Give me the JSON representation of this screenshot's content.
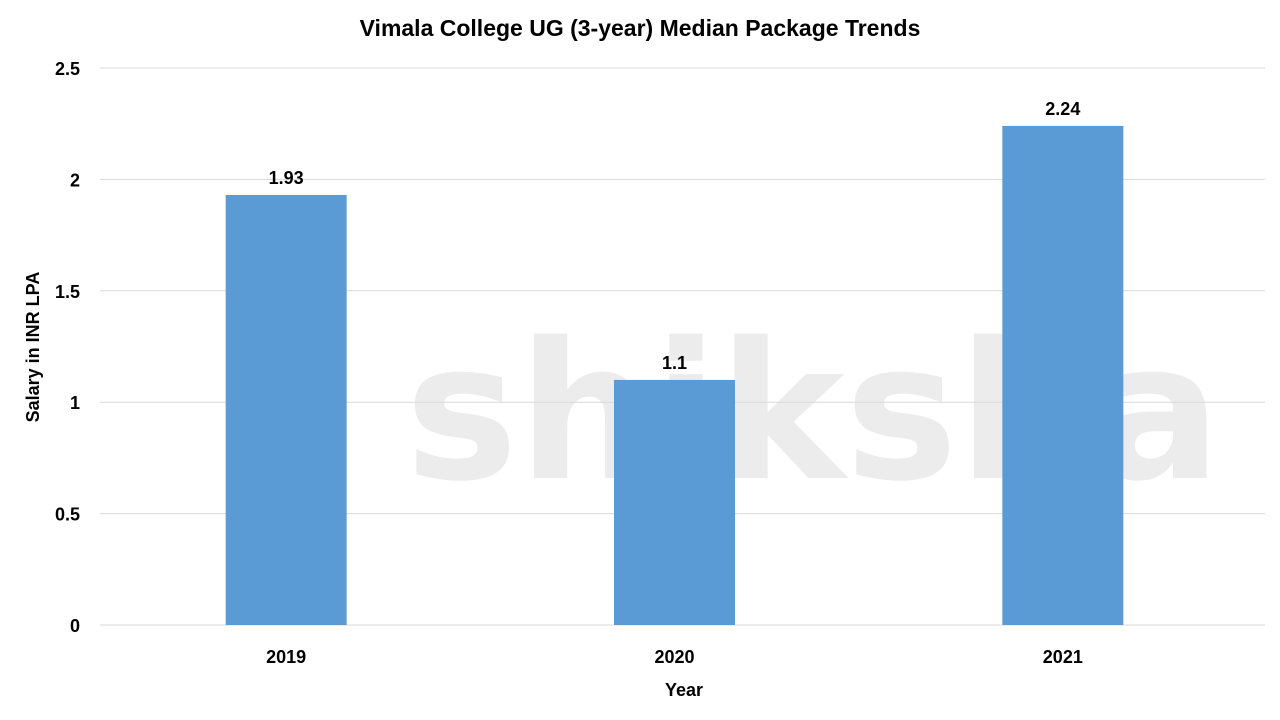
{
  "chart_data": {
    "type": "bar",
    "title": "Vimala College UG (3-year) Median Package Trends",
    "xlabel": "Year",
    "ylabel": "Salary in INR LPA",
    "categories": [
      "2019",
      "2020",
      "2021"
    ],
    "values": [
      1.93,
      1.1,
      2.24
    ],
    "data_labels": [
      "1.93",
      "1.1",
      "2.24"
    ],
    "ylim": [
      0,
      2.5
    ],
    "yticks": [
      0,
      0.5,
      1,
      1.5,
      2,
      2.5
    ],
    "ytick_labels": [
      "0",
      "0.5",
      "1",
      "1.5",
      "2",
      "2.5"
    ],
    "grid": true,
    "legend": "none",
    "bar_color": "#5B9BD5",
    "grid_color": "#D9D9D9"
  },
  "watermark": "shiksha"
}
